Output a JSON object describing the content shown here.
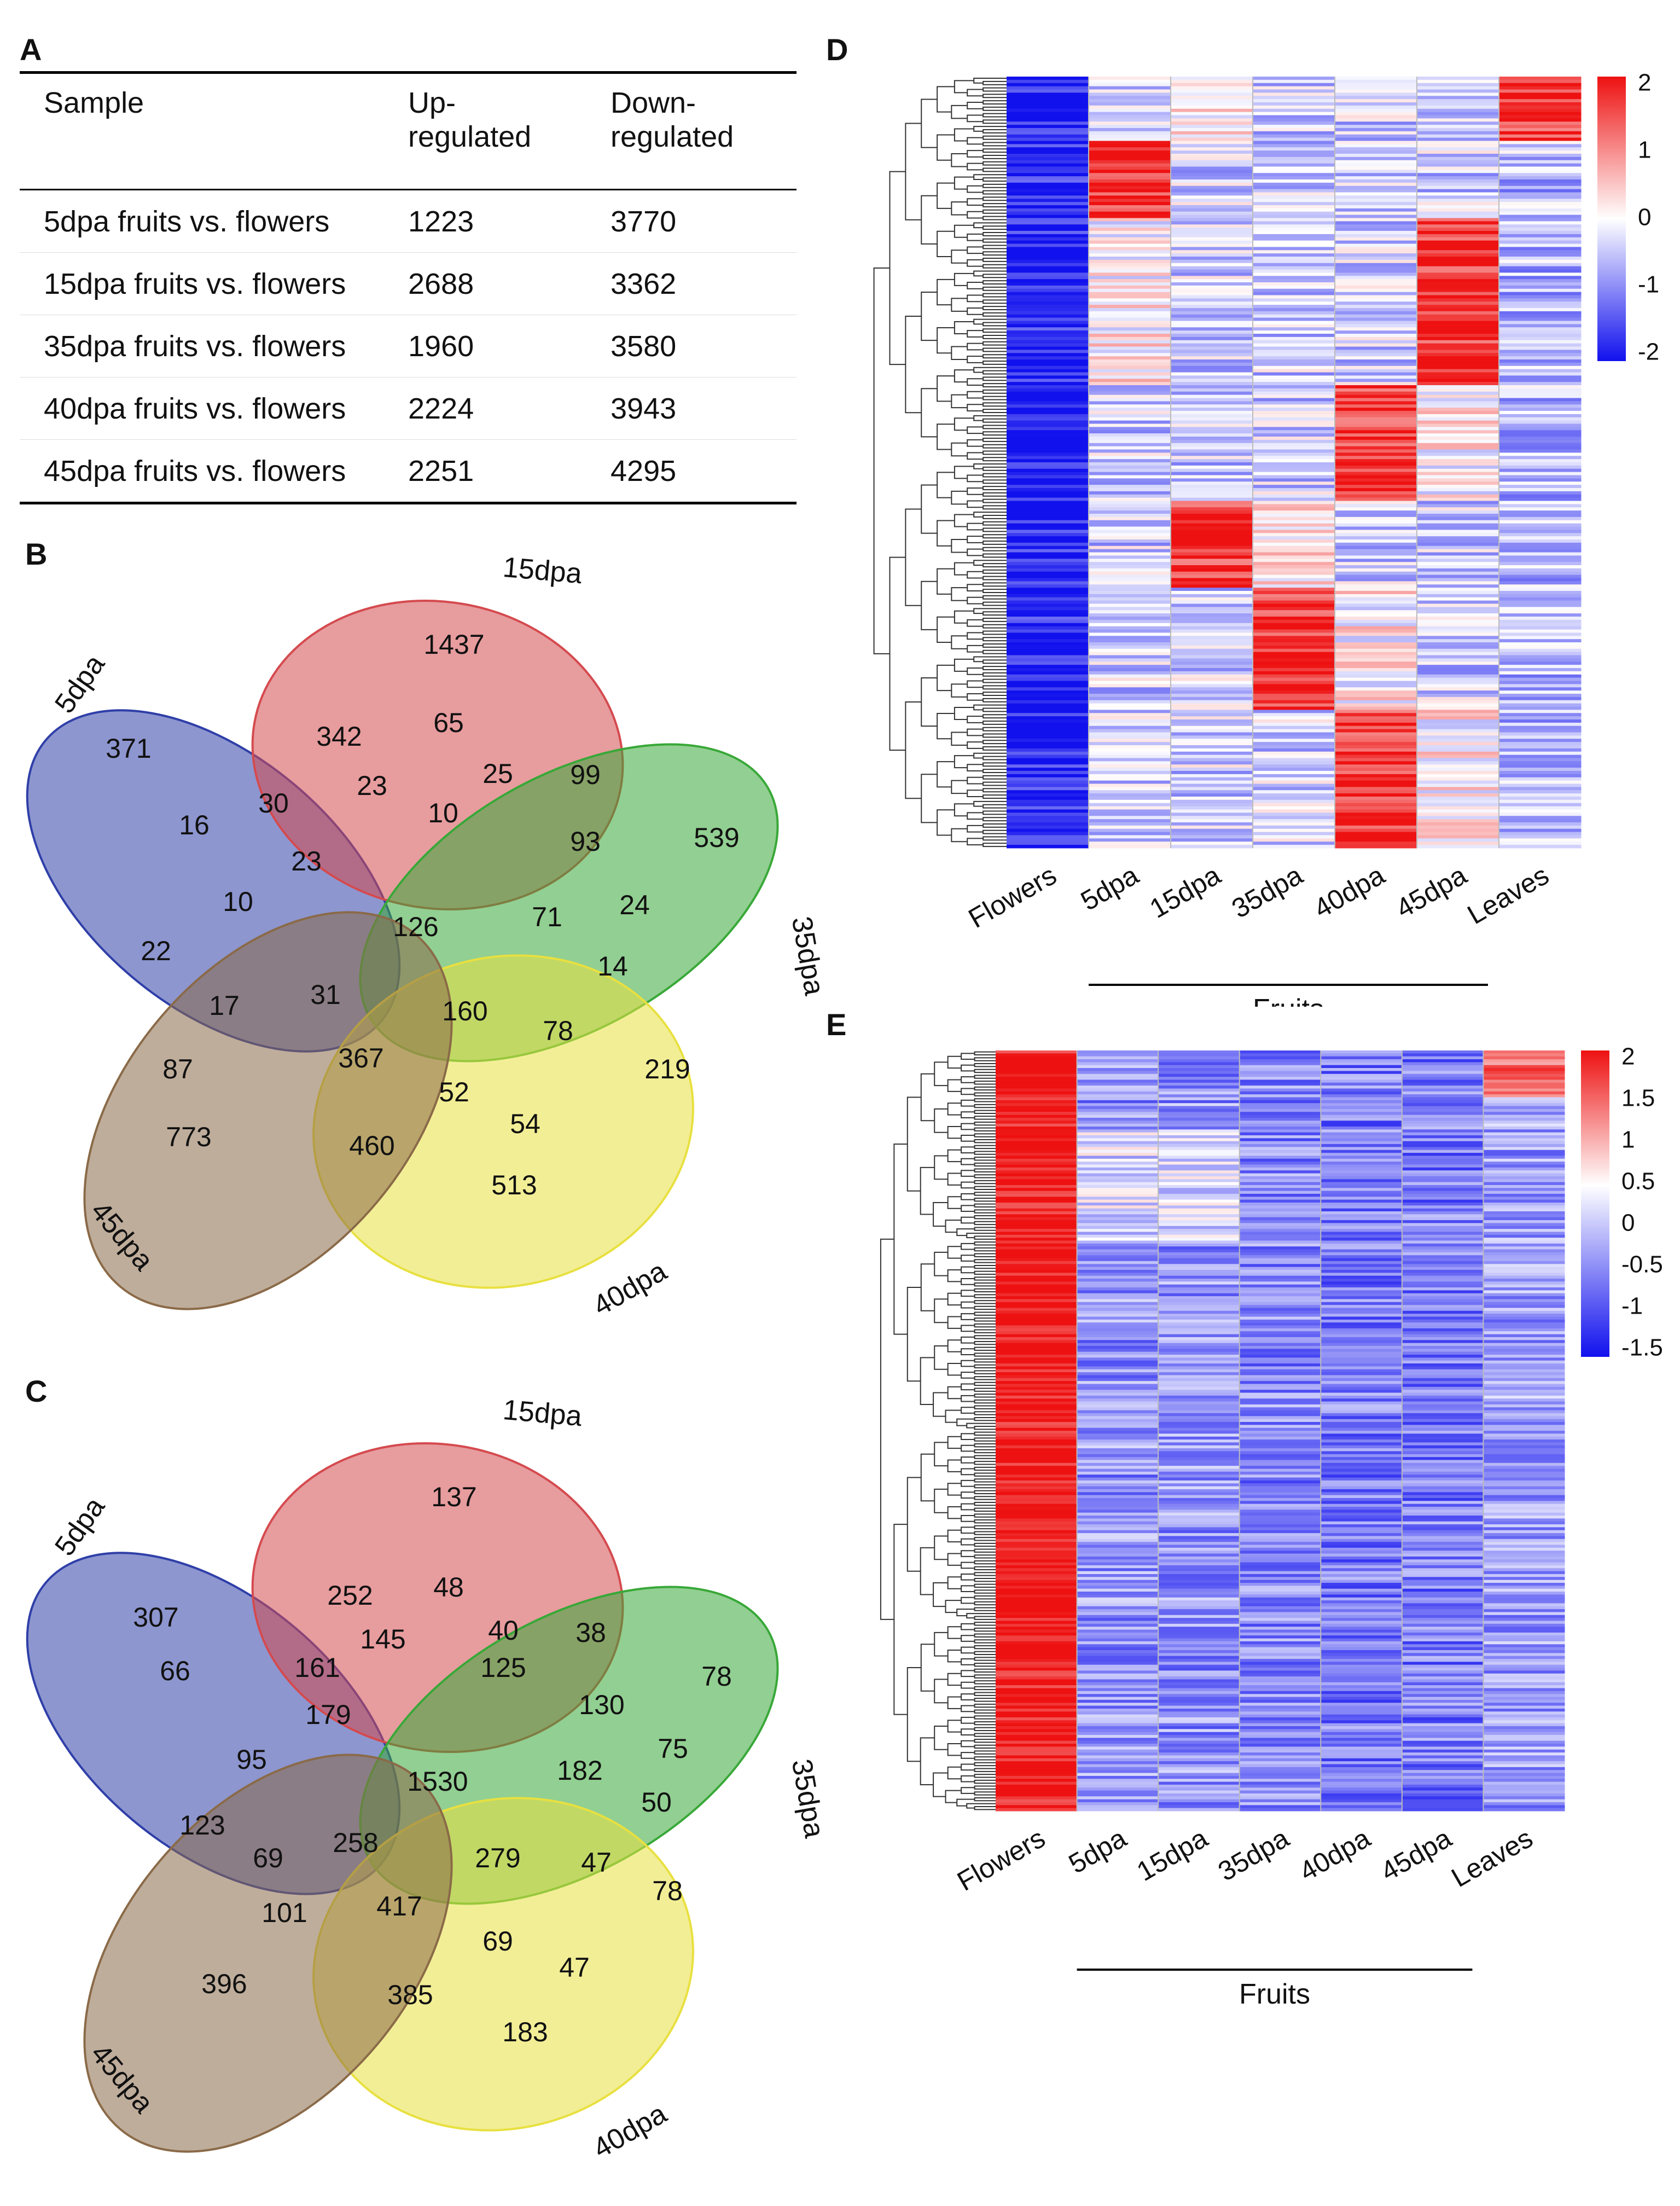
{
  "panels": {
    "A": "A",
    "B": "B",
    "C": "C",
    "D": "D",
    "E": "E"
  },
  "table_a": {
    "headers": [
      "Sample",
      "Up-\nregulated",
      "Down-\nregulated"
    ],
    "rows": [
      {
        "sample": "5dpa fruits vs. flowers",
        "up": "1223",
        "down": "3770"
      },
      {
        "sample": "15dpa fruits vs. flowers",
        "up": "2688",
        "down": "3362"
      },
      {
        "sample": "35dpa fruits vs. flowers",
        "up": "1960",
        "down": "3580"
      },
      {
        "sample": "40dpa fruits vs. flowers",
        "up": "2224",
        "down": "3943"
      },
      {
        "sample": "45dpa fruits vs. flowers",
        "up": "2251",
        "down": "4295"
      }
    ]
  },
  "venn_sets": [
    {
      "name": "5dpa",
      "color": "#2f3fa8"
    },
    {
      "name": "15dpa",
      "color": "#d44a4e"
    },
    {
      "name": "35dpa",
      "color": "#38a838"
    },
    {
      "name": "40dpa",
      "color": "#e8e040"
    },
    {
      "name": "45dpa",
      "color": "#8a6a48"
    }
  ],
  "venn_b": {
    "labels": [
      "5dpa",
      "15dpa",
      "35dpa",
      "40dpa",
      "45dpa"
    ],
    "counts": [
      "1437",
      "342",
      "65",
      "371",
      "23",
      "25",
      "99",
      "539",
      "16",
      "30",
      "10",
      "93",
      "23",
      "24",
      "10",
      "71",
      "126",
      "22",
      "14",
      "31",
      "17",
      "160",
      "78",
      "219",
      "87",
      "367",
      "52",
      "54",
      "773",
      "460",
      "513"
    ]
  },
  "venn_c": {
    "labels": [
      "5dpa",
      "15dpa",
      "35dpa",
      "40dpa",
      "45dpa"
    ],
    "counts": [
      "137",
      "252",
      "48",
      "307",
      "145",
      "40",
      "38",
      "78",
      "161",
      "125",
      "66",
      "179",
      "130",
      "75",
      "95",
      "182",
      "1530",
      "123",
      "50",
      "258",
      "69",
      "279",
      "47",
      "78",
      "101",
      "417",
      "69",
      "47",
      "396",
      "385",
      "183"
    ]
  },
  "heatmap_d": {
    "columns": [
      "Flowers",
      "5dpa",
      "15dpa",
      "35dpa",
      "40dpa",
      "45dpa",
      "Leaves"
    ],
    "group_label": "Fruits",
    "legend_ticks": [
      "2",
      "1",
      "0",
      "-1",
      "-2"
    ]
  },
  "heatmap_e": {
    "columns": [
      "Flowers",
      "5dpa",
      "15dpa",
      "35dpa",
      "40dpa",
      "45dpa",
      "Leaves"
    ],
    "group_label": "Fruits",
    "legend_ticks": [
      "2",
      "1.5",
      "1",
      "0.5",
      "0",
      "-0.5",
      "-1",
      "-1.5"
    ]
  },
  "colors": {
    "heat_high": "#ee1111",
    "heat_mid": "#ffffff",
    "heat_low": "#1111ee"
  }
}
